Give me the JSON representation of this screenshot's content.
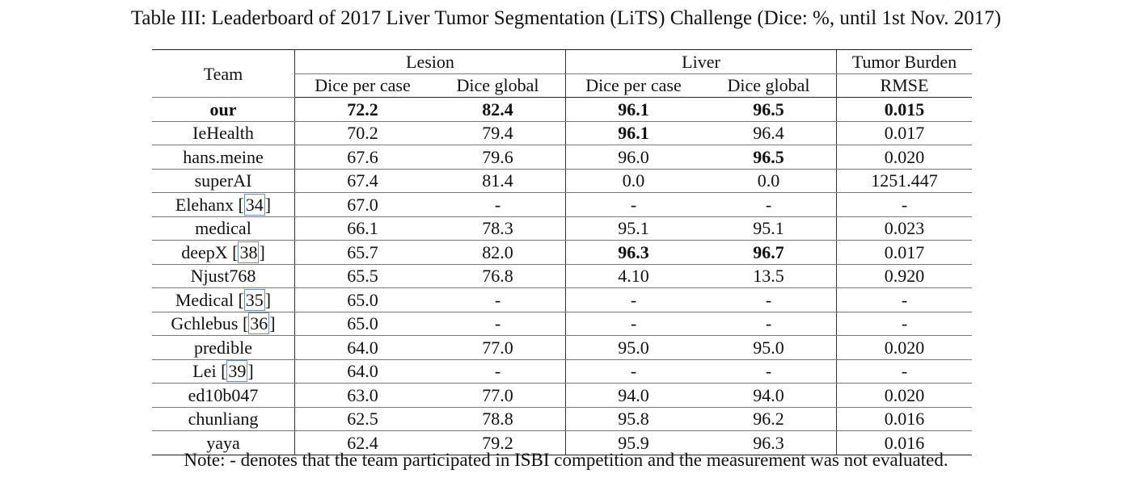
{
  "caption": "Table III: Leaderboard of 2017 Liver Tumor Segmentation (LiTS) Challenge (Dice: %, until 1st Nov. 2017)",
  "header": {
    "team": "Team",
    "groups": [
      "Lesion",
      "Liver",
      "Tumor Burden"
    ],
    "subcolumns": [
      "Dice per case",
      "Dice global",
      "Dice per case",
      "Dice global",
      "RMSE"
    ]
  },
  "rows": [
    {
      "team": "our",
      "ref": "",
      "values": [
        "72.2",
        "82.4",
        "96.1",
        "96.5",
        "0.015"
      ],
      "bold": [
        true,
        true,
        true,
        true,
        true,
        true
      ]
    },
    {
      "team": "IeHealth",
      "ref": "",
      "values": [
        "70.2",
        "79.4",
        "96.1",
        "96.4",
        "0.017"
      ],
      "bold": [
        false,
        false,
        false,
        true,
        false,
        false
      ]
    },
    {
      "team": "hans.meine",
      "ref": "",
      "values": [
        "67.6",
        "79.6",
        "96.0",
        "96.5",
        "0.020"
      ],
      "bold": [
        false,
        false,
        false,
        false,
        true,
        false
      ]
    },
    {
      "team": "superAI",
      "ref": "",
      "values": [
        "67.4",
        "81.4",
        "0.0",
        "0.0",
        "1251.447"
      ],
      "bold": [
        false,
        false,
        false,
        false,
        false,
        false
      ]
    },
    {
      "team": "Elehanx",
      "ref": "34",
      "values": [
        "67.0",
        "-",
        "-",
        "-",
        "-"
      ],
      "bold": [
        false,
        false,
        false,
        false,
        false,
        false
      ]
    },
    {
      "team": "medical",
      "ref": "",
      "values": [
        "66.1",
        "78.3",
        "95.1",
        "95.1",
        "0.023"
      ],
      "bold": [
        false,
        false,
        false,
        false,
        false,
        false
      ]
    },
    {
      "team": "deepX",
      "ref": "38",
      "values": [
        "65.7",
        "82.0",
        "96.3",
        "96.7",
        "0.017"
      ],
      "bold": [
        false,
        false,
        false,
        true,
        true,
        false
      ]
    },
    {
      "team": "Njust768",
      "ref": "",
      "values": [
        "65.5",
        "76.8",
        "4.10",
        "13.5",
        "0.920"
      ],
      "bold": [
        false,
        false,
        false,
        false,
        false,
        false
      ]
    },
    {
      "team": "Medical",
      "ref": "35",
      "values": [
        "65.0",
        "-",
        "-",
        "-",
        "-"
      ],
      "bold": [
        false,
        false,
        false,
        false,
        false,
        false
      ]
    },
    {
      "team": "Gchlebus",
      "ref": "36",
      "values": [
        "65.0",
        "-",
        "-",
        "-",
        "-"
      ],
      "bold": [
        false,
        false,
        false,
        false,
        false,
        false
      ]
    },
    {
      "team": "predible",
      "ref": "",
      "values": [
        "64.0",
        "77.0",
        "95.0",
        "95.0",
        "0.020"
      ],
      "bold": [
        false,
        false,
        false,
        false,
        false,
        false
      ]
    },
    {
      "team": "Lei",
      "ref": "39",
      "values": [
        "64.0",
        "-",
        "-",
        "-",
        "-"
      ],
      "bold": [
        false,
        false,
        false,
        false,
        false,
        false
      ]
    },
    {
      "team": "ed10b047",
      "ref": "",
      "values": [
        "63.0",
        "77.0",
        "94.0",
        "94.0",
        "0.020"
      ],
      "bold": [
        false,
        false,
        false,
        false,
        false,
        false
      ]
    },
    {
      "team": "chunliang",
      "ref": "",
      "values": [
        "62.5",
        "78.8",
        "95.8",
        "96.2",
        "0.016"
      ],
      "bold": [
        false,
        false,
        false,
        false,
        false,
        false
      ]
    },
    {
      "team": "yaya",
      "ref": "",
      "values": [
        "62.4",
        "79.2",
        "95.9",
        "96.3",
        "0.016"
      ],
      "bold": [
        false,
        false,
        false,
        false,
        false,
        false
      ]
    }
  ],
  "note": "Note: - denotes that the team participated in ISBI competition and the measurement was not evaluated."
}
